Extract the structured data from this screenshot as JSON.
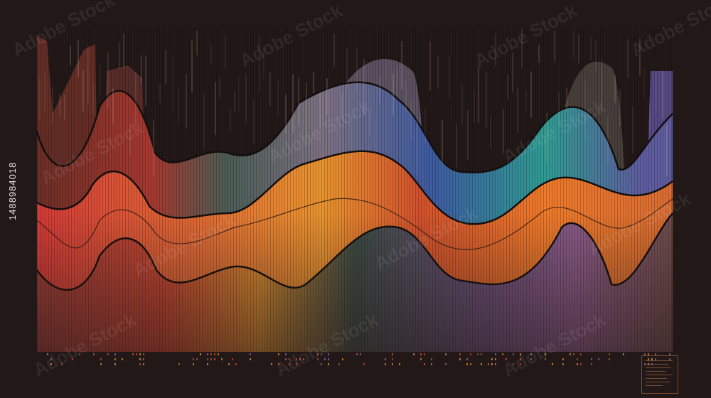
{
  "image": {
    "stock_id": "1488984018",
    "watermark": "Adobe Stock",
    "colors": {
      "background": "#231818",
      "outline": "#150f0e",
      "layers": [
        "#5a3a36",
        "#b2433a",
        "#d3533c",
        "#de8a34",
        "#3e4f48",
        "#7b6f8c"
      ]
    }
  }
}
